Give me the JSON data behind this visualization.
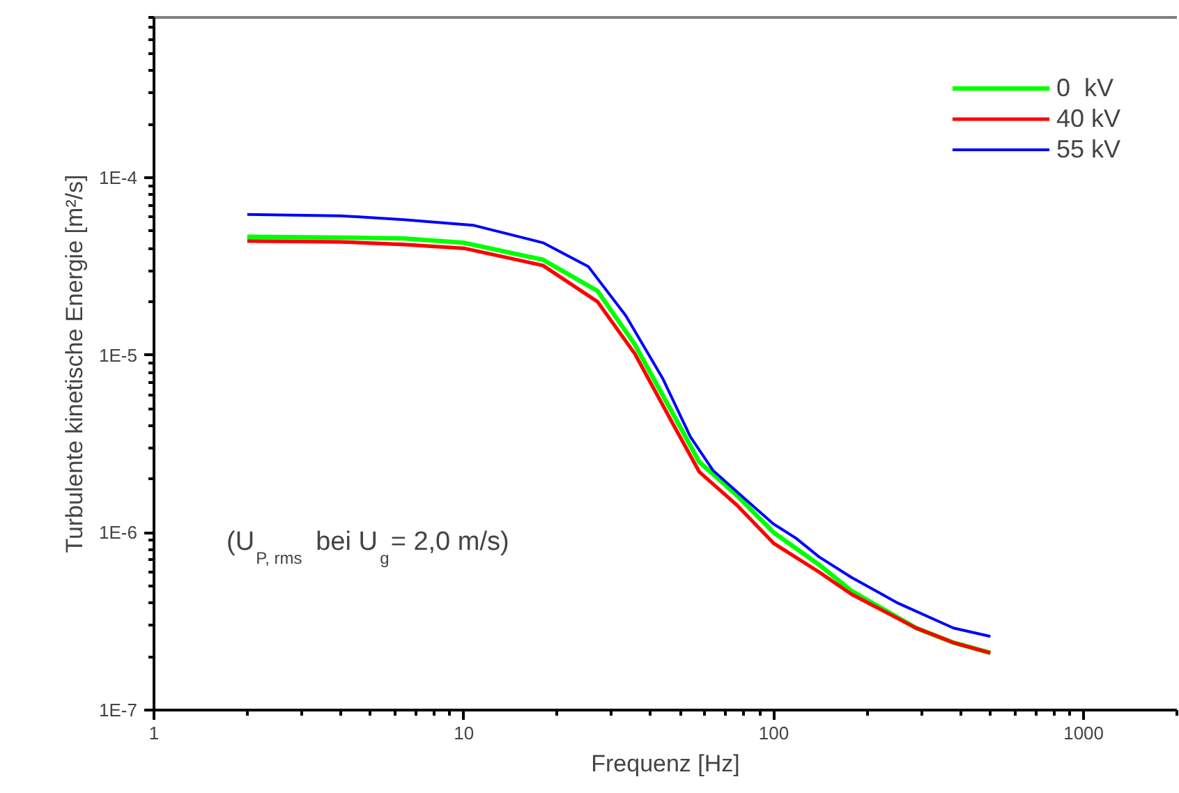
{
  "chart_data": {
    "type": "line",
    "xlabel": "Frequenz [Hz]",
    "ylabel": "Turbulente kinetische Energie [m²/s]",
    "log": "xy",
    "xlim": [
      1,
      2000
    ],
    "ylim": [
      1e-07,
      0.0008
    ],
    "xticks": [
      1,
      10,
      100,
      1000
    ],
    "yticks": [
      {
        "value": 1e-07,
        "label": "1E-7"
      },
      {
        "value": 1e-06,
        "label": "1E-6"
      },
      {
        "value": 1e-05,
        "label": "1E-5"
      },
      {
        "value": 0.0001,
        "label": "1E-4"
      }
    ],
    "grid": false,
    "legend": "top right",
    "line_style": "solid",
    "marker": "none",
    "annotations": [
      "(U$_{P, rms}$ bei U$_{g}$= 2,0 m/s)"
    ],
    "series": [
      {
        "name": "0  kV",
        "color": "#00ff00",
        "x": [
          2,
          4,
          6.4,
          10,
          18,
          27,
          35.6,
          46.9,
          57.5,
          76,
          100,
          140,
          178,
          288,
          380,
          500
        ],
        "values": [
          4.65e-05,
          4.6e-05,
          4.55e-05,
          4.3e-05,
          3.45e-05,
          2.3e-05,
          1.15e-05,
          4.8e-06,
          2.5e-06,
          1.62e-06,
          1e-06,
          6.6e-07,
          4.7e-07,
          2.9e-07,
          2.4e-07,
          2.1e-07
        ]
      },
      {
        "name": "40 kV",
        "color": "#ff0000",
        "x": [
          2,
          4,
          6.4,
          10,
          18,
          27,
          35.6,
          46.9,
          57.5,
          76,
          100,
          140,
          178,
          288,
          380,
          500
        ],
        "values": [
          4.4e-05,
          4.35e-05,
          4.2e-05,
          4e-05,
          3.2e-05,
          2e-05,
          1.02e-05,
          4.2e-06,
          2.2e-06,
          1.43e-06,
          8.7e-07,
          6e-07,
          4.5e-07,
          2.9e-07,
          2.4e-07,
          2.1e-07
        ]
      },
      {
        "name": "55 kV",
        "color": "#0000ff",
        "x": [
          2,
          4,
          6.4,
          10.7,
          18,
          25.2,
          33.3,
          43.8,
          53.8,
          63.7,
          81,
          99.7,
          118,
          140,
          178,
          252,
          380,
          500
        ],
        "values": [
          6.2e-05,
          6.1e-05,
          5.8e-05,
          5.4e-05,
          4.3e-05,
          3.16e-05,
          1.67e-05,
          7.4e-06,
          3.47e-06,
          2.24e-06,
          1.54e-06,
          1.12e-06,
          9.3e-07,
          7.3e-07,
          5.6e-07,
          4e-07,
          2.9e-07,
          2.6e-07
        ]
      }
    ]
  }
}
